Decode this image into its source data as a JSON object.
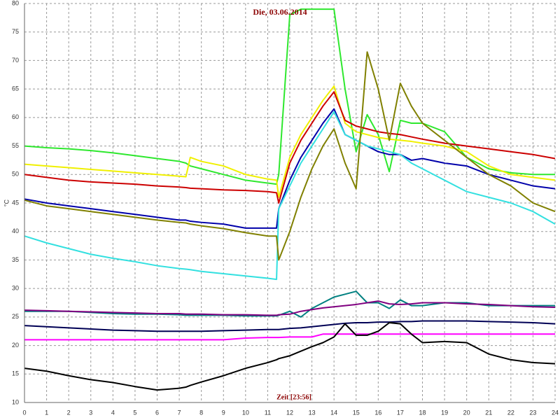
{
  "chart_data": {
    "type": "line",
    "title": "Die, 03.06.2014",
    "x_label": "Zeit [23:56]",
    "y_label": "°C",
    "x": [
      0,
      1,
      2,
      3,
      4,
      5,
      6,
      7,
      7.3,
      7.5,
      8,
      9,
      10,
      11,
      11.4,
      11.5,
      12,
      12.5,
      13,
      13.5,
      14,
      14.5,
      15,
      15.5,
      16,
      16.5,
      17,
      17.5,
      18,
      19,
      20,
      21,
      22,
      23,
      24
    ],
    "xlim": [
      0,
      24
    ],
    "xticks": [
      0,
      1,
      2,
      3,
      4,
      5,
      6,
      7,
      8,
      9,
      10,
      11,
      12,
      13,
      14,
      15,
      16,
      17,
      18,
      19,
      20,
      21,
      22,
      23,
      24
    ],
    "ylim": [
      10,
      80
    ],
    "yticks": [
      10,
      15,
      20,
      25,
      30,
      35,
      40,
      45,
      50,
      55,
      60,
      65,
      70,
      75,
      80
    ],
    "grid": true,
    "series": [
      {
        "color": "#2ee82e",
        "values": [
          55,
          54.7,
          54.5,
          54.2,
          53.8,
          53.3,
          52.8,
          52.3,
          52,
          51.5,
          51,
          50,
          49,
          48.5,
          48.3,
          50,
          78,
          79,
          79,
          79,
          79,
          65,
          54,
          60.5,
          57,
          50.5,
          59.5,
          59,
          59,
          57.5,
          53,
          51,
          50.3,
          50,
          50
        ]
      },
      {
        "color": "#f0f000",
        "values": [
          51.8,
          51.5,
          51.2,
          50.9,
          50.6,
          50.3,
          50,
          49.7,
          49.6,
          53,
          52.3,
          51.5,
          50,
          49.2,
          49,
          46,
          53,
          57,
          60,
          63,
          65.5,
          59,
          57.5,
          57,
          56.5,
          56.2,
          56,
          55.8,
          55.5,
          55,
          54,
          51.5,
          50,
          49.5,
          49
        ]
      },
      {
        "color": "#cc0000",
        "values": [
          50,
          49.5,
          49,
          48.7,
          48.5,
          48.3,
          48,
          47.8,
          47.7,
          47.6,
          47.5,
          47.3,
          47.2,
          47,
          46.8,
          45,
          52,
          56,
          59,
          62,
          64.5,
          59.5,
          58.5,
          58,
          57.5,
          57.2,
          57,
          56.6,
          56.2,
          55.5,
          55,
          54.5,
          54,
          53.5,
          52.8
        ]
      },
      {
        "color": "#0000aa",
        "values": [
          45.7,
          45,
          44.5,
          44,
          43.5,
          43,
          42.5,
          42,
          42,
          41.8,
          41.6,
          41.3,
          40.6,
          40.6,
          40.6,
          44,
          49,
          53,
          56,
          59,
          61.5,
          57,
          56,
          55,
          54,
          53.5,
          53.5,
          52.5,
          52.8,
          52,
          51.5,
          50,
          49,
          48,
          47.5
        ]
      },
      {
        "color": "#33e0e0",
        "values": [
          39.2,
          38,
          37,
          36,
          35.3,
          34.7,
          34,
          33.5,
          33.4,
          33.3,
          33,
          32.6,
          32.2,
          31.8,
          31.6,
          44,
          48,
          52,
          55,
          58,
          61,
          57,
          56,
          55,
          54.5,
          54,
          53.5,
          52,
          51,
          49,
          47,
          46,
          45,
          43.5,
          41.3
        ]
      },
      {
        "color": "#808000",
        "values": [
          45.5,
          44.5,
          44,
          43.5,
          43,
          42.5,
          42,
          41.6,
          41.5,
          41.3,
          41,
          40.5,
          39.8,
          39.2,
          39.2,
          35,
          40,
          46,
          51,
          55,
          58,
          52,
          47.5,
          71.5,
          65,
          56,
          66,
          62,
          59,
          56,
          53,
          50,
          48,
          45,
          43.5
        ]
      },
      {
        "color": "#008080",
        "values": [
          26,
          26,
          26,
          25.8,
          25.6,
          25.5,
          25.5,
          25.4,
          25.3,
          25.3,
          25.3,
          25.3,
          25.2,
          25.2,
          25.2,
          25.3,
          26,
          25,
          26.5,
          27.5,
          28.5,
          29,
          29.5,
          27.5,
          27.5,
          26.5,
          28,
          27,
          27,
          27.5,
          27.5,
          27,
          27,
          27,
          27
        ]
      },
      {
        "color": "#800080",
        "values": [
          26.2,
          26.1,
          26,
          25.9,
          25.8,
          25.7,
          25.6,
          25.6,
          25.5,
          25.5,
          25.5,
          25.4,
          25.4,
          25.3,
          25.3,
          25.4,
          25.5,
          26,
          26.3,
          26.6,
          26.8,
          27,
          27.2,
          27.5,
          27.8,
          27.3,
          27.2,
          27.3,
          27.5,
          27.5,
          27.3,
          27.2,
          27,
          26.8,
          26.7
        ]
      },
      {
        "color": "#000055",
        "values": [
          23.5,
          23.3,
          23.1,
          22.9,
          22.7,
          22.6,
          22.5,
          22.5,
          22.5,
          22.5,
          22.5,
          22.6,
          22.7,
          22.8,
          22.8,
          22.8,
          23,
          23.1,
          23.3,
          23.5,
          23.7,
          23.9,
          24,
          24,
          24.1,
          24.1,
          24.2,
          24.2,
          24.3,
          24.3,
          24.3,
          24.2,
          24.1,
          24,
          23.8
        ]
      },
      {
        "color": "#ff00ff",
        "values": [
          21,
          21,
          21,
          21,
          21,
          21,
          21,
          21,
          21,
          21,
          21,
          21,
          21.3,
          21.4,
          21.4,
          21.4,
          21.5,
          21.5,
          21.5,
          22,
          22,
          22,
          22,
          22,
          22,
          22,
          22,
          22,
          22,
          22,
          22,
          22,
          22,
          22,
          22
        ]
      },
      {
        "color": "#000000",
        "values": [
          16,
          15.5,
          14.7,
          14,
          13.5,
          12.8,
          12.2,
          12.5,
          12.7,
          13,
          13.6,
          14.7,
          16,
          17,
          17.5,
          17.7,
          18.2,
          19,
          19.8,
          20.5,
          21.5,
          23.8,
          21.8,
          21.8,
          22.5,
          24,
          23.8,
          22,
          20.5,
          20.7,
          20.5,
          18.5,
          17.5,
          17,
          16.8
        ]
      }
    ]
  }
}
